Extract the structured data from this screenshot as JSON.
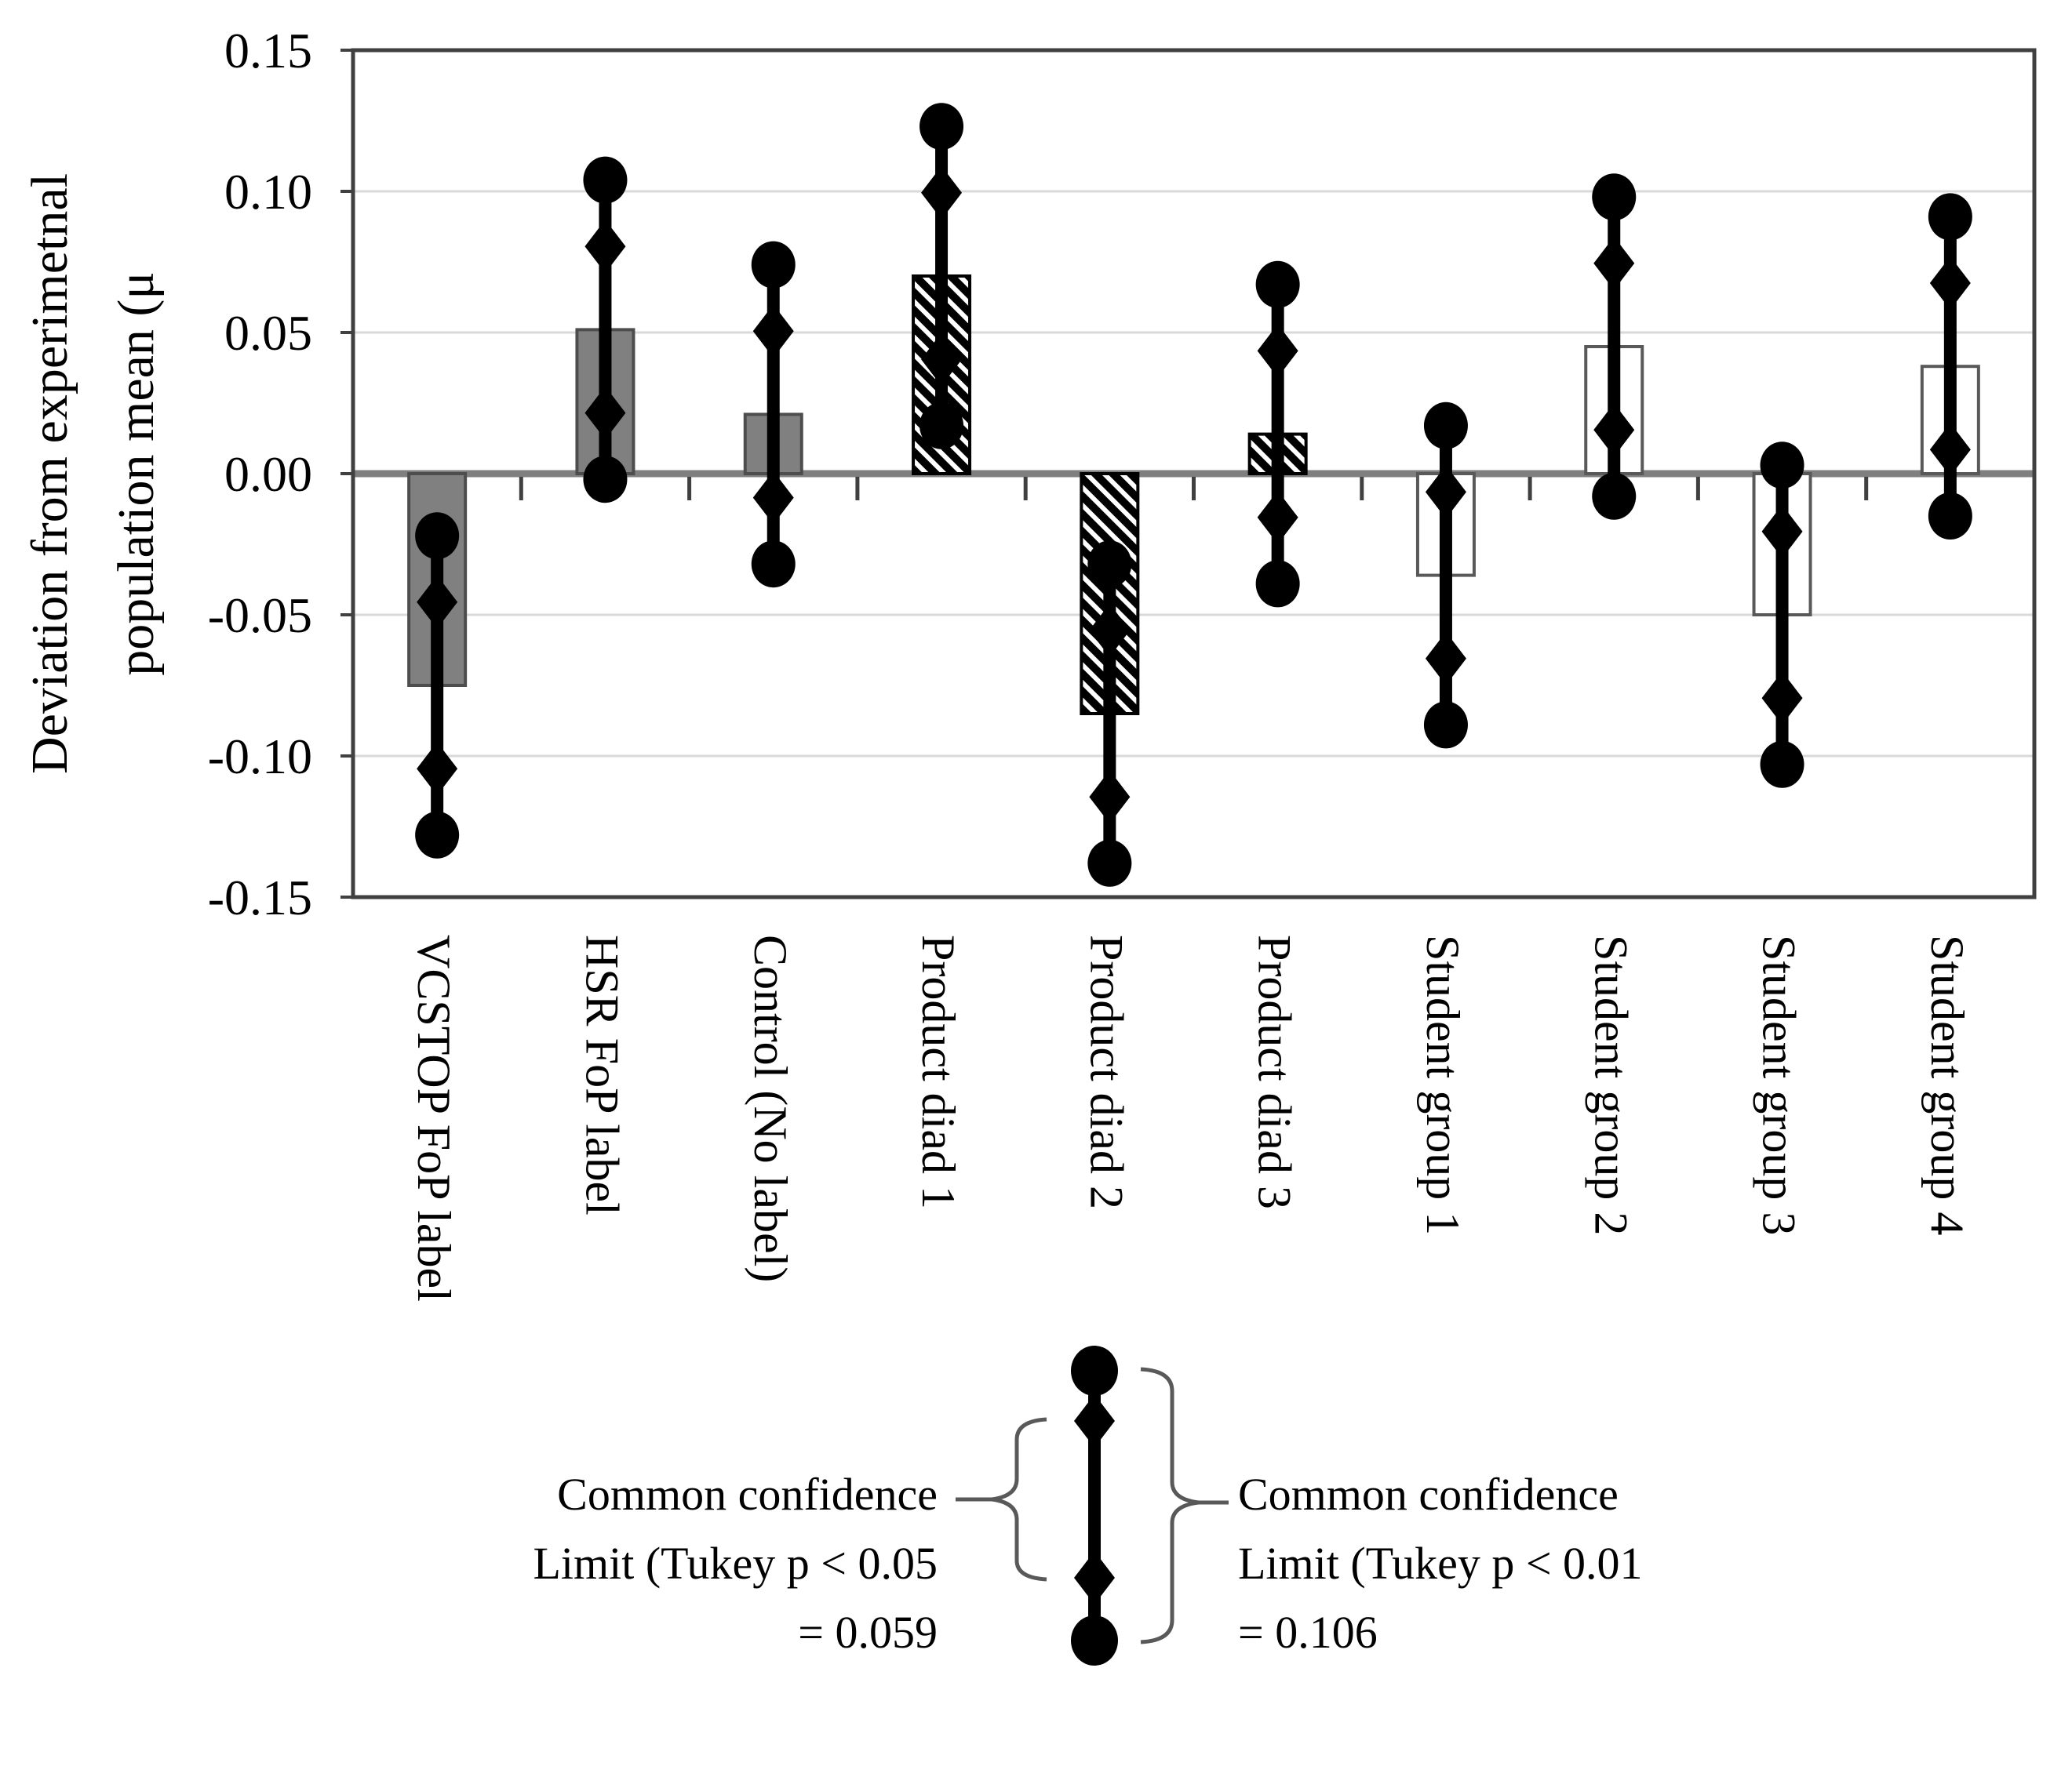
{
  "chart_data": {
    "type": "bar",
    "title": "",
    "ylabel": "Deviation from experimetnal population mean (μ",
    "ylabel_lines": [
      "Deviation from experimetnal",
      "population mean (μ"
    ],
    "categories": [
      "VCSTOP FoP label",
      "HSR FoP label",
      "Control (No label)",
      "Product diad 1",
      "Product diad 2",
      "Product diad 3",
      "Student group 1",
      "Student group 2",
      "Student group 3",
      "Student group 4"
    ],
    "values": [
      -0.075,
      0.051,
      0.021,
      0.07,
      -0.085,
      0.014,
      -0.036,
      0.045,
      -0.05,
      0.038
    ],
    "bar_styles": [
      "solid-gray",
      "solid-gray",
      "solid-gray",
      "diagonal-hatch",
      "diagonal-hatch",
      "diagonal-hatch",
      "white-outline",
      "white-outline",
      "white-outline",
      "white-outline"
    ],
    "error_bars": {
      "diamond_half_range": 0.0295,
      "circle_half_range": 0.053,
      "diamond_full_range": 0.059,
      "circle_full_range": 0.106
    },
    "ylim": [
      -0.15,
      0.15
    ],
    "ytick_step": 0.05,
    "ytick_labels": [
      "0.15",
      "0.10",
      "0.05",
      "0.00",
      "-0.05",
      "-0.10",
      "-0.15"
    ],
    "grid": true,
    "legend": {
      "left_lines": [
        "Common confidence",
        "Limit (Tukey p < 0.05",
        "= 0.059"
      ],
      "right_lines": [
        "Common confidence",
        "Limit (Tukey p < 0.01",
        "= 0.106"
      ]
    }
  },
  "colors": {
    "bar_gray_fill": "#808080",
    "bar_gray_border": "#4d4d4d",
    "hatch_border": "#000000",
    "white_bar_border": "#595959",
    "marker": "#000000",
    "gridline": "#d9d9d9",
    "zero_line": "#7f7f7f",
    "frame": "#404040",
    "brace": "#595959",
    "text": "#000000"
  }
}
